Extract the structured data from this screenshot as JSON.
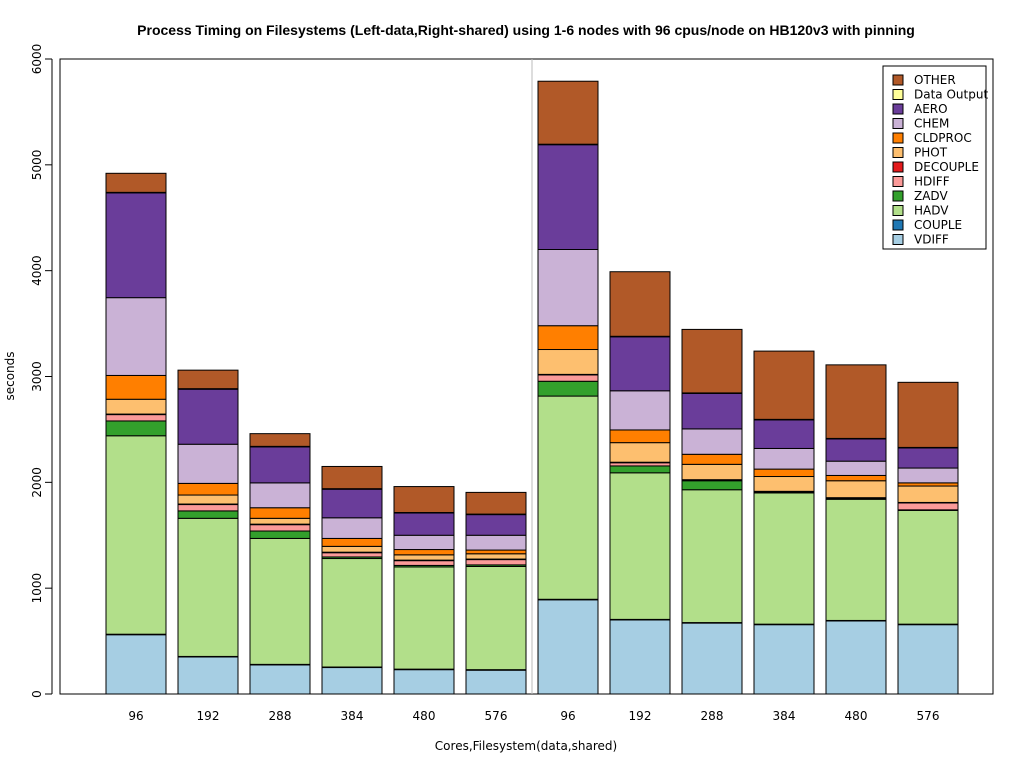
{
  "chart_data": {
    "type": "bar",
    "stacked": true,
    "title": "Process Timing on Filesystems (Left-data,Right-shared) using 1-6 nodes with 96 cpus/node on HB120v3 with pinning",
    "xlabel": "Cores,Filesystem(data,shared)",
    "ylabel": "seconds",
    "ylim": [
      0,
      6000
    ],
    "yticks": [
      "0",
      "1000",
      "2000",
      "3000",
      "4000",
      "5000",
      "6000"
    ],
    "categories": [
      "96",
      "192",
      "288",
      "384",
      "480",
      "576",
      "96",
      "192",
      "288",
      "384",
      "480",
      "576"
    ],
    "legend_position": "top-right",
    "series": [
      {
        "name": "VDIFF",
        "color": "#a6cee3",
        "values": [
          560,
          350,
          275,
          250,
          230,
          225,
          890,
          700,
          670,
          655,
          690,
          655
        ]
      },
      {
        "name": "COUPLE",
        "color": "#1f78b4",
        "values": [
          5,
          5,
          5,
          5,
          5,
          5,
          5,
          5,
          5,
          5,
          5,
          5
        ]
      },
      {
        "name": "HADV",
        "color": "#b2df8a",
        "values": [
          1875,
          1305,
          1190,
          1025,
          965,
          975,
          1920,
          1385,
          1255,
          1240,
          1145,
          1075
        ]
      },
      {
        "name": "ZADV",
        "color": "#33a02c",
        "values": [
          140,
          70,
          70,
          15,
          15,
          15,
          140,
          65,
          85,
          5,
          5,
          5
        ]
      },
      {
        "name": "HDIFF",
        "color": "#fb9a99",
        "values": [
          60,
          60,
          60,
          40,
          45,
          50,
          60,
          30,
          5,
          5,
          5,
          65
        ]
      },
      {
        "name": "DECOUPLE",
        "color": "#e31a1c",
        "values": [
          5,
          5,
          5,
          5,
          5,
          5,
          5,
          5,
          5,
          5,
          5,
          5
        ]
      },
      {
        "name": "PHOT",
        "color": "#fdbf6f",
        "values": [
          140,
          85,
          55,
          55,
          50,
          50,
          235,
          185,
          145,
          140,
          160,
          155
        ]
      },
      {
        "name": "CLDPROC",
        "color": "#ff7f00",
        "values": [
          225,
          110,
          100,
          75,
          50,
          35,
          225,
          120,
          95,
          70,
          50,
          30
        ]
      },
      {
        "name": "CHEM",
        "color": "#cab2d6",
        "values": [
          735,
          370,
          235,
          195,
          135,
          140,
          720,
          370,
          240,
          195,
          135,
          140
        ]
      },
      {
        "name": "AERO",
        "color": "#6a3d9a",
        "values": [
          990,
          520,
          340,
          270,
          210,
          195,
          990,
          510,
          335,
          270,
          210,
          190
        ]
      },
      {
        "name": "Data Output",
        "color": "#ffff99",
        "values": [
          5,
          5,
          5,
          5,
          5,
          5,
          5,
          5,
          5,
          5,
          5,
          5
        ]
      },
      {
        "name": "OTHER",
        "color": "#b15928",
        "values": [
          180,
          175,
          120,
          210,
          245,
          205,
          595,
          610,
          600,
          645,
          695,
          615
        ]
      }
    ]
  }
}
